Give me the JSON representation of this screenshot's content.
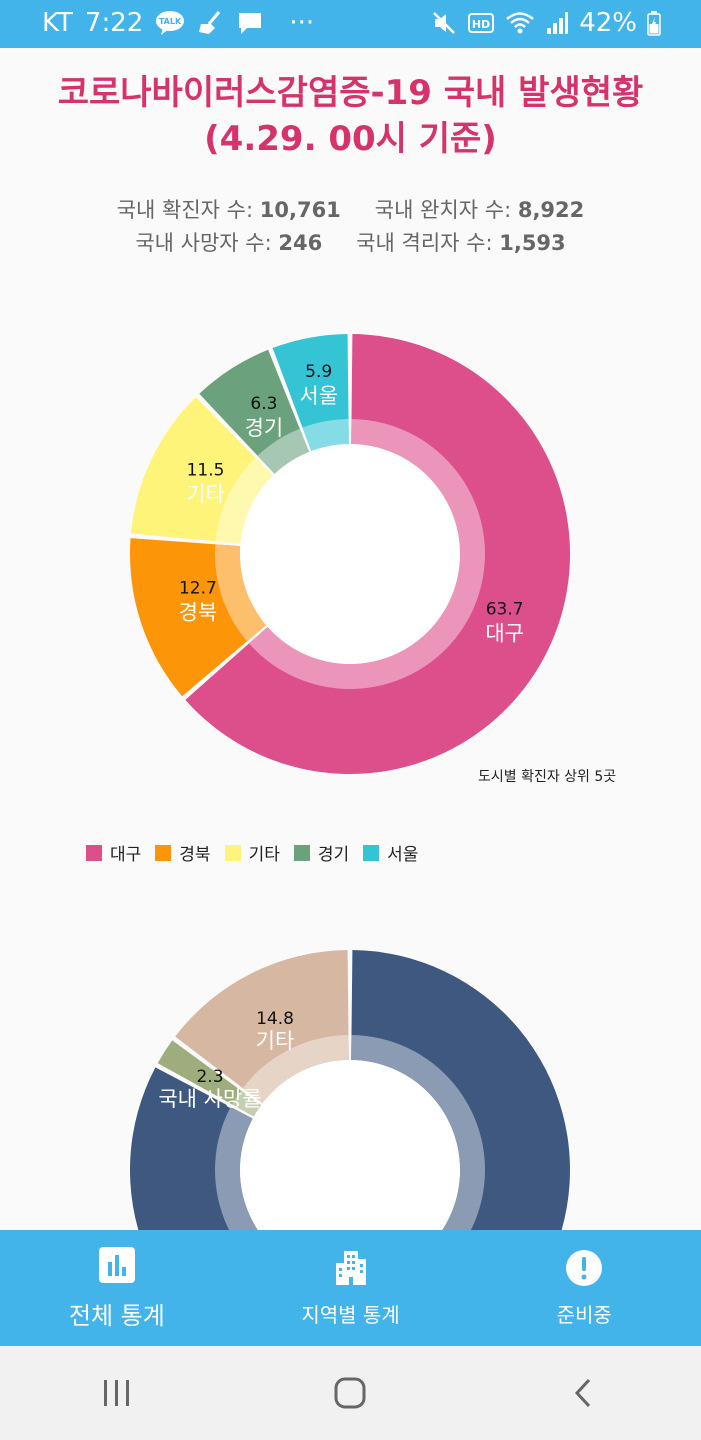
{
  "status_bar": {
    "carrier": "KT",
    "time": "7:22",
    "talk_label": "TALK",
    "more": "···",
    "hd_label": "HD",
    "battery": "42%"
  },
  "header": {
    "title_line1": "코로나바이러스감염증-19 국내 발생현황",
    "title_line2": "(4.29. 00시 기준)"
  },
  "stats": {
    "confirmed_label": "국내 확진자 수: ",
    "confirmed_value": "10,761",
    "recovered_label": "국내 완치자 수: ",
    "recovered_value": "8,922",
    "deaths_label": "국내 사망자 수: ",
    "deaths_value": "246",
    "isolated_label": "국내 격리자 수: ",
    "isolated_value": "1,593"
  },
  "chart_data": [
    {
      "type": "pie",
      "title": "",
      "caption": "도시별 확진자 상위 5곳",
      "categories": [
        "대구",
        "경북",
        "기타",
        "경기",
        "서울"
      ],
      "values": [
        63.7,
        12.7,
        11.5,
        6.3,
        5.9
      ],
      "value_labels": [
        "63.7",
        "12.7",
        "11.5",
        "6.3",
        "5.9"
      ],
      "colors": [
        "#dc4f8b",
        "#fc9508",
        "#fff47a",
        "#6ba27d",
        "#35c4d3"
      ],
      "legend": [
        "대구",
        "경북",
        "기타",
        "경기",
        "서울"
      ],
      "legend_position": "bottom-left"
    },
    {
      "type": "pie",
      "title": "",
      "categories": [
        "국내 사망률",
        "기타"
      ],
      "visible_values": [
        2.3,
        14.8
      ],
      "value_labels": [
        "2.3",
        "14.8"
      ],
      "colors": [
        "#3e5880",
        "#9dad7c",
        "#d6b7a2"
      ]
    }
  ],
  "bottom_nav": {
    "items": [
      {
        "label": "전체 통계"
      },
      {
        "label": "지역별 통계"
      },
      {
        "label": "준비중"
      }
    ]
  }
}
